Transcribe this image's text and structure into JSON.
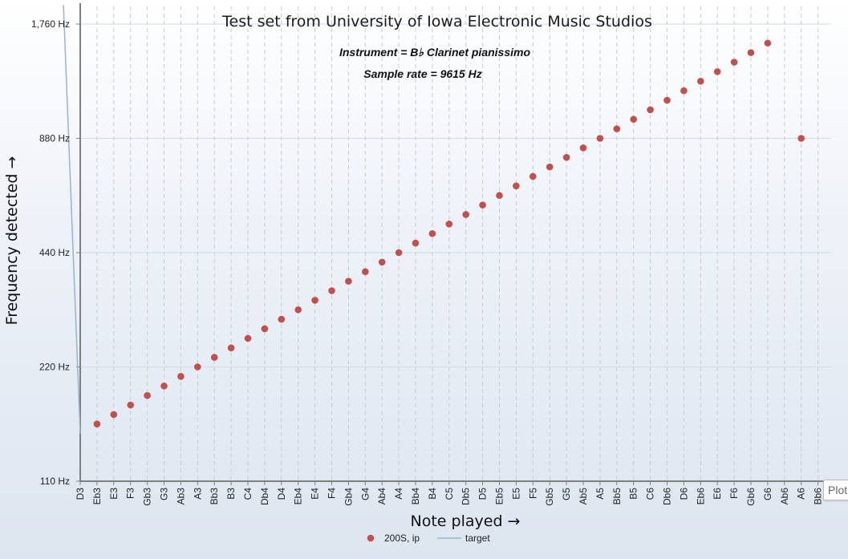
{
  "chart_data": {
    "type": "scatter",
    "title": "Test set from University of Iowa Electronic Music Studios",
    "subtitles": [
      "Instrument = B♭ Clarinet pianissimo",
      "Sample rate = 9615 Hz"
    ],
    "xlabel": "Note played →",
    "ylabel": "Frequency detected →",
    "y_scale": "log2",
    "ylim": [
      110,
      1980
    ],
    "y_ticks": [
      110,
      220,
      440,
      880,
      1760
    ],
    "y_tick_labels": [
      "110 Hz",
      "220 Hz",
      "440 Hz",
      "880 Hz",
      "1,760 Hz"
    ],
    "categories": [
      "D3",
      "Eb3",
      "E3",
      "F3",
      "Gb3",
      "G3",
      "Ab3",
      "A3",
      "Bb3",
      "B3",
      "C4",
      "Db4",
      "D4",
      "Eb4",
      "E4",
      "F4",
      "Gb4",
      "G4",
      "Ab4",
      "A4",
      "Bb4",
      "B4",
      "C5",
      "Db5",
      "D5",
      "Eb5",
      "E5",
      "F5",
      "Gb5",
      "G5",
      "Ab5",
      "A5",
      "Bb5",
      "B5",
      "C6",
      "Db6",
      "D6",
      "Eb6",
      "E6",
      "F6",
      "Gb6",
      "G6",
      "Ab6",
      "A6",
      "Bb6"
    ],
    "grid": true,
    "legend_position": "bottom",
    "series": [
      {
        "name": "200S, ip",
        "kind": "points",
        "color": "#c0504d",
        "values": [
          null,
          155.6,
          164.8,
          174.6,
          185.0,
          196.0,
          207.7,
          220.0,
          233.1,
          246.9,
          261.6,
          277.2,
          293.7,
          311.1,
          329.6,
          349.2,
          370.0,
          392.0,
          415.3,
          440.0,
          466.2,
          493.9,
          523.3,
          554.4,
          587.3,
          622.3,
          659.3,
          698.5,
          740.0,
          784.0,
          830.6,
          880.0,
          932.3,
          987.8,
          1046.5,
          1108.7,
          1174.7,
          1244.5,
          1318.5,
          1396.9,
          1480.0,
          1568.0,
          null,
          880.0,
          null
        ]
      },
      {
        "name": "target",
        "kind": "line",
        "color": "#95b3d7",
        "x_range": [
          "D3",
          "B6"
        ],
        "values_at_ends": [
          146.8,
          1975.5
        ]
      }
    ]
  },
  "plot_tab_label": "Plot"
}
